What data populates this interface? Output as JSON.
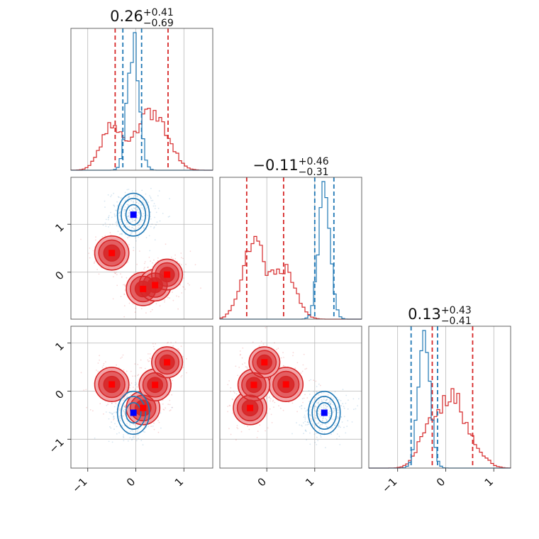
{
  "colors": {
    "red": "#d62728",
    "blue": "#1f77b4",
    "red_fill": "#f3a5a9",
    "blue_fill": "#c7dcef",
    "grid": "#b8b8b8"
  },
  "chart_data": {
    "type": "scatter",
    "subtype": "corner-plot",
    "grid": true,
    "ticks": [
      -1,
      0,
      1
    ],
    "tick_labels": [
      "−1",
      "0",
      "1"
    ],
    "variables": [
      {
        "range": [
          -1.35,
          1.6
        ]
      },
      {
        "range": [
          -0.98,
          1.98
        ]
      },
      {
        "range": [
          -1.6,
          1.35
        ]
      }
    ],
    "titles": [
      {
        "main": "0.26",
        "plus": "+0.41",
        "minus": "−0.69"
      },
      {
        "main": "−0.11",
        "plus": "+0.46",
        "minus": "−0.31"
      },
      {
        "main": "0.13",
        "plus": "+0.43",
        "minus": "−0.41"
      }
    ],
    "series": [
      {
        "color": "red",
        "quantiles": [
          [
            -0.43,
            0.67
          ],
          [
            -0.42,
            0.35
          ],
          [
            -0.28,
            0.56
          ]
        ],
        "modes": [
          {
            "x": [
              -0.5,
              0.4,
              0.14
            ],
            "w": 0.35
          },
          {
            "x": [
              0.15,
              -0.35,
              -0.35
            ],
            "w": 0.3
          },
          {
            "x": [
              0.4,
              -0.27,
              0.13
            ],
            "w": 0.2
          },
          {
            "x": [
              0.65,
              -0.05,
              0.6
            ],
            "w": 0.15
          }
        ],
        "markers": [
          [
            -0.5,
            0.4,
            0.14
          ],
          [
            0.15,
            -0.35,
            -0.35
          ],
          [
            0.4,
            -0.27,
            0.13
          ],
          [
            0.65,
            -0.05,
            0.6
          ]
        ]
      },
      {
        "color": "blue",
        "quantiles": [
          [
            -0.27,
            0.12
          ],
          [
            1.0,
            1.4
          ],
          [
            -0.72,
            -0.17
          ]
        ],
        "modes": [
          {
            "x": [
              -0.05,
              1.2,
              -0.45
            ],
            "w": 1.0
          }
        ],
        "markers": [
          [
            -0.05,
            1.2,
            -0.45
          ]
        ]
      }
    ]
  }
}
